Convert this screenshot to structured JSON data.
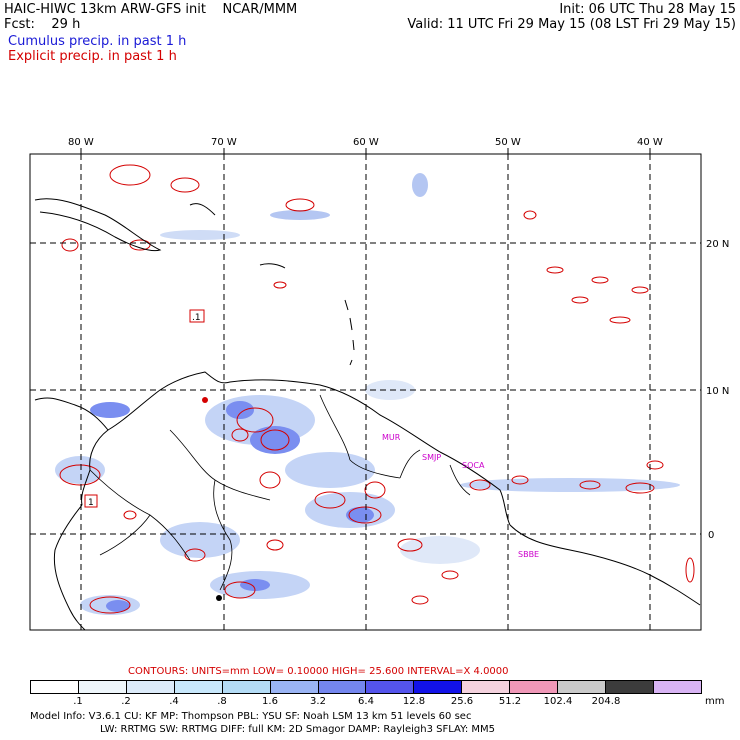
{
  "header": {
    "line1_left": "HAIC-HIWC 13km ARW-GFS init    NCAR/MMM",
    "line2_left": "Fcst:    29 h",
    "line1_right": "Init: 06 UTC Thu 28 May 15",
    "line2_right": "Valid: 11 UTC Fri 29 May 15 (08 LST Fri 29 May 15)"
  },
  "legend": {
    "cumulus": "Cumulus precip. in past 1 h",
    "explicit": "Explicit precip. in past 1 h",
    "cumulus_color": "#1a1ad6",
    "explicit_color": "#d40000"
  },
  "map": {
    "lon_labels": [
      "80 W",
      "70 W",
      "60 W",
      "50 W",
      "40 W"
    ],
    "lat_labels": [
      "20 N",
      "10 N",
      "0"
    ],
    "stations": [
      "MUR",
      "SMJP",
      "SOCA",
      "SBBE"
    ],
    "box_labels": [
      ".1",
      "1"
    ],
    "colors": {
      "coast": "#000000",
      "border": "#000000",
      "explicit": "#d40000",
      "cumulus_light": "#b8d0f4",
      "cumulus_mid": "#7a8ef0",
      "station": "#cc00cc"
    }
  },
  "contours": {
    "text": "CONTOURS:  UNITS=mm   LOW= 0.10000      HIGH=  25.600      INTERVAL=X  4.0000"
  },
  "colorbar": {
    "colors": [
      "#ffffff",
      "#eef6fb",
      "#dcebfa",
      "#c8e8fc",
      "#b4dcf6",
      "#9ab4f4",
      "#7486ee",
      "#5454ec",
      "#1212e8",
      "#f4d2de",
      "#f098b8",
      "#cacaca",
      "#3c3c3c",
      "#d8b4f4"
    ],
    "ticks": [
      ".1",
      ".2",
      ".4",
      ".8",
      "1.6",
      "3.2",
      "6.4",
      "12.8",
      "25.6",
      "51.2",
      "102.4",
      "204.8"
    ],
    "units": "mm"
  },
  "model_info": {
    "line1": "Model Info: V3.6.1    CU: KF       MP: Thompson      PBL: YSU        SF: Noah LSM      13 km    51 levels    60 sec",
    "line2": "LW: RRTMG    SW: RRTMG   DIFF: full     KM: 2D Smagor DAMP: Rayleigh3   SFLAY: MM5"
  }
}
